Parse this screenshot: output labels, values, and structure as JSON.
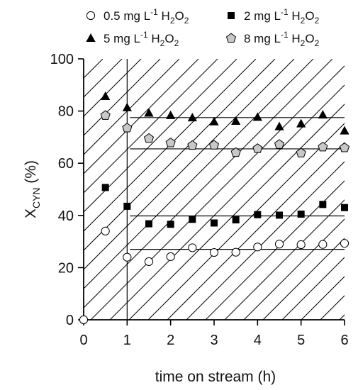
{
  "chart_data": {
    "type": "scatter",
    "xlabel": "time on stream (h)",
    "ylabel": {
      "main": "X",
      "sub": "CYN",
      "unit": " (%)"
    },
    "xlim": [
      0,
      6
    ],
    "ylim": [
      0,
      100
    ],
    "xticks": [
      0,
      1,
      2,
      3,
      4,
      5,
      6
    ],
    "yticks": [
      0,
      20,
      40,
      60,
      80,
      100
    ],
    "grid": false,
    "legend_position": "top",
    "shaded_region": {
      "x": [
        0,
        1
      ],
      "pattern": "diagonal-hatch"
    },
    "series": [
      {
        "name": {
          "pre": "0.5 mg L",
          "sup": "-1",
          "mid": " H",
          "sub": "2",
          "mid2": "O",
          "sub2": "2"
        },
        "marker": "circle-open",
        "color": "#000000",
        "x": [
          0,
          0.5,
          1,
          1.5,
          2,
          2.5,
          3,
          3.5,
          4,
          4.5,
          5,
          5.5,
          6
        ],
        "y": [
          0,
          34,
          24,
          22.3,
          24.2,
          27.6,
          25.8,
          25.9,
          27.9,
          29,
          28.8,
          28.9,
          29.3
        ],
        "steady_line": {
          "x": [
            1,
            6
          ],
          "y": 27
        }
      },
      {
        "name": {
          "pre": "2 mg L",
          "sup": "-1",
          "mid": " H",
          "sub": "2",
          "mid2": "O",
          "sub2": "2"
        },
        "marker": "square-filled",
        "color": "#000000",
        "x": [
          0.5,
          1,
          1.5,
          2,
          2.5,
          3,
          3.5,
          4,
          4.5,
          5,
          5.5,
          6
        ],
        "y": [
          50.7,
          43.5,
          36.8,
          36.6,
          38.5,
          37.1,
          38.3,
          40.3,
          40.1,
          40.5,
          44.2,
          43
        ],
        "steady_line": {
          "x": [
            1,
            6
          ],
          "y": 39.8
        }
      },
      {
        "name": {
          "pre": "5 mg L",
          "sup": "-1",
          "mid": " H",
          "sub": "2",
          "mid2": "O",
          "sub2": "2"
        },
        "marker": "triangle-filled",
        "color": "#000000",
        "x": [
          0.5,
          1,
          1.5,
          2,
          2.5,
          3,
          3.5,
          4,
          4.5,
          5,
          5.5,
          6
        ],
        "y": [
          85.6,
          81.3,
          79.2,
          78.3,
          77.4,
          75.9,
          76.1,
          77.6,
          74,
          75.1,
          78.5,
          72.4
        ],
        "steady_line": {
          "x": [
            1,
            6
          ],
          "y": 77.5
        }
      },
      {
        "name": {
          "pre": "8 mg L",
          "sup": "-1",
          "mid": " H",
          "sub": "2",
          "mid2": "O",
          "sub2": "2"
        },
        "marker": "pentagon-gray",
        "color": "#c8c8c8",
        "x": [
          0.5,
          1,
          1.5,
          2,
          2.5,
          3,
          3.5,
          4,
          4.5,
          5,
          5.5,
          6
        ],
        "y": [
          78.3,
          73.5,
          69.5,
          67.8,
          66.8,
          66.9,
          64.1,
          65.6,
          67.2,
          63.9,
          66.2,
          65.9
        ],
        "steady_line": {
          "x": [
            1,
            6
          ],
          "y": 65.5
        }
      }
    ]
  }
}
